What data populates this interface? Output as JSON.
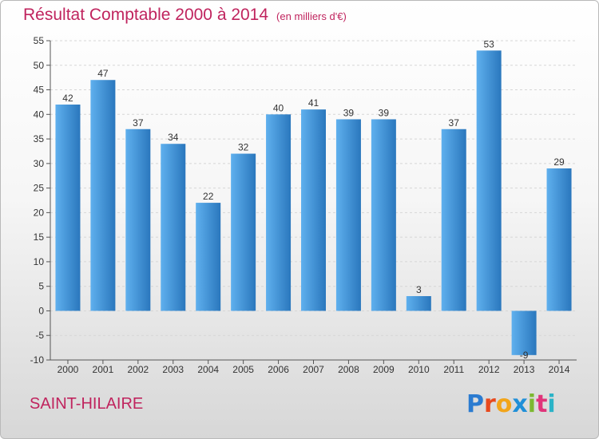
{
  "title": "Résultat Comptable 2000 à 2014",
  "unit": "(en milliers d'€)",
  "place": "SAINT-HILAIRE",
  "logo": {
    "text": "Proxiti",
    "letters": [
      "P",
      "r",
      "o",
      "x",
      "i",
      "t",
      "i"
    ],
    "colors": [
      "#2b7bd0",
      "#e8491d",
      "#f2a51a",
      "#1f8fd8",
      "#7cb830",
      "#e0347a",
      "#2bb3c7"
    ]
  },
  "colors": {
    "bar_light": "#5fb0ee",
    "bar_dark": "#2a77bd",
    "title": "#c0245e"
  },
  "chart_data": {
    "type": "bar",
    "categories": [
      "2000",
      "2001",
      "2002",
      "2003",
      "2004",
      "2005",
      "2006",
      "2007",
      "2008",
      "2009",
      "2010",
      "2011",
      "2012",
      "2013",
      "2014"
    ],
    "values": [
      42,
      47,
      37,
      34,
      22,
      32,
      40,
      41,
      39,
      39,
      3,
      37,
      53,
      -9,
      29
    ],
    "ylim": [
      -10,
      55
    ],
    "yticks": [
      -10,
      -5,
      0,
      5,
      10,
      15,
      20,
      25,
      30,
      35,
      40,
      45,
      50,
      55
    ],
    "grid": true,
    "xlabel": "",
    "ylabel": ""
  }
}
